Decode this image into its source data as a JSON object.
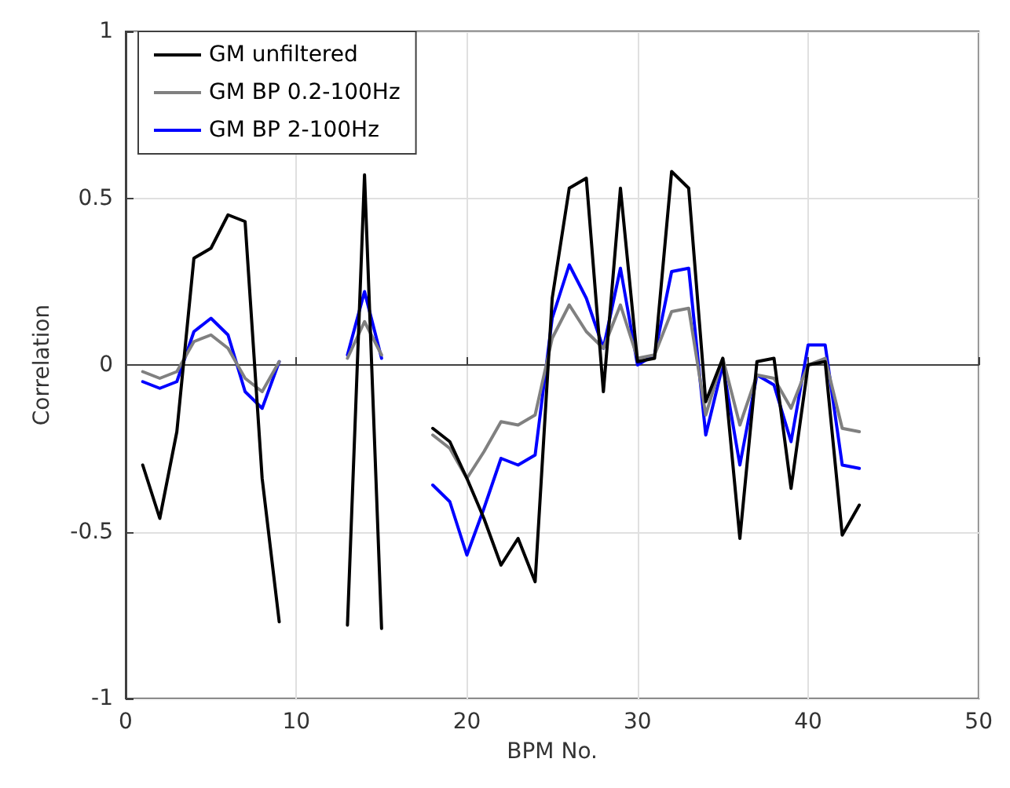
{
  "chart_data": {
    "type": "line",
    "xlabel": "BPM No.",
    "ylabel": "Correlation",
    "x": [
      1,
      2,
      3,
      4,
      5,
      6,
      7,
      8,
      9,
      10,
      11,
      12,
      13,
      14,
      15,
      16,
      17,
      18,
      19,
      20,
      21,
      22,
      23,
      24,
      25,
      26,
      27,
      28,
      29,
      30,
      31,
      32,
      33,
      34,
      35,
      36,
      37,
      38,
      39,
      40,
      41,
      42,
      43
    ],
    "series": [
      {
        "name": "GM unfiltered",
        "color": "#000000",
        "values": [
          -0.3,
          -0.46,
          -0.2,
          0.32,
          0.35,
          0.45,
          0.43,
          -0.34,
          -0.77,
          null,
          null,
          null,
          -0.78,
          0.57,
          -0.79,
          null,
          null,
          -0.19,
          -0.23,
          -0.34,
          -0.46,
          -0.6,
          -0.52,
          -0.65,
          0.2,
          0.53,
          0.56,
          -0.08,
          0.53,
          0.01,
          0.02,
          0.58,
          0.53,
          -0.11,
          0.02,
          -0.52,
          0.01,
          0.02,
          -0.37,
          0,
          0.01,
          -0.51,
          -0.42
        ]
      },
      {
        "name": "GM BP 0.2-100Hz",
        "color": "#808080",
        "values": [
          -0.02,
          -0.04,
          -0.02,
          0.07,
          0.09,
          0.05,
          -0.04,
          -0.08,
          0.01,
          null,
          null,
          null,
          0.02,
          0.13,
          0.03,
          null,
          null,
          -0.21,
          -0.25,
          -0.34,
          -0.26,
          -0.17,
          -0.18,
          -0.15,
          0.08,
          0.18,
          0.1,
          0.05,
          0.18,
          0.02,
          0.03,
          0.16,
          0.17,
          -0.15,
          0.02,
          -0.18,
          -0.03,
          -0.04,
          -0.13,
          0,
          0.02,
          -0.19,
          -0.2
        ]
      },
      {
        "name": "GM BP 2-100Hz",
        "color": "#0000ff",
        "values": [
          -0.05,
          -0.07,
          -0.05,
          0.1,
          0.14,
          0.09,
          -0.08,
          -0.13,
          0.01,
          null,
          null,
          null,
          0.03,
          0.22,
          0.02,
          null,
          null,
          -0.36,
          -0.41,
          -0.57,
          -0.43,
          -0.28,
          -0.3,
          -0.27,
          0.14,
          0.3,
          0.2,
          0.05,
          0.29,
          0,
          0.03,
          0.28,
          0.29,
          -0.21,
          0,
          -0.3,
          -0.03,
          -0.06,
          -0.23,
          0.06,
          0.06,
          -0.3,
          -0.31
        ]
      }
    ],
    "xlim": [
      0,
      50
    ],
    "xticks": [
      0,
      10,
      20,
      30,
      40,
      50
    ],
    "ylim": [
      -1,
      1
    ],
    "yticks": [
      -1,
      -0.5,
      0,
      0.5,
      1
    ],
    "grid": true,
    "legend": "top left",
    "marker": "none",
    "line_style": "solid"
  }
}
